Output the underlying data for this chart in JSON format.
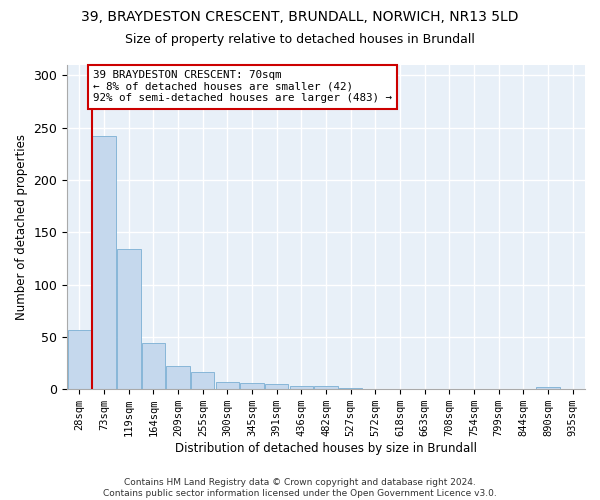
{
  "title": "39, BRAYDESTON CRESCENT, BRUNDALL, NORWICH, NR13 5LD",
  "subtitle": "Size of property relative to detached houses in Brundall",
  "xlabel": "Distribution of detached houses by size in Brundall",
  "ylabel": "Number of detached properties",
  "bar_color": "#c5d8ed",
  "bar_edge_color": "#7aafd4",
  "annotation_line_color": "#cc0000",
  "annotation_box_color": "#ffffff",
  "annotation_box_edge": "#cc0000",
  "figure_bg": "#ffffff",
  "axes_bg": "#e8f0f8",
  "grid_color": "#ffffff",
  "categories": [
    "28sqm",
    "73sqm",
    "119sqm",
    "164sqm",
    "209sqm",
    "255sqm",
    "300sqm",
    "345sqm",
    "391sqm",
    "436sqm",
    "482sqm",
    "527sqm",
    "572sqm",
    "618sqm",
    "663sqm",
    "708sqm",
    "754sqm",
    "799sqm",
    "844sqm",
    "890sqm",
    "935sqm"
  ],
  "values": [
    57,
    242,
    134,
    44,
    22,
    16,
    7,
    6,
    5,
    3,
    3,
    1,
    0,
    0,
    0,
    0,
    0,
    0,
    0,
    2,
    0
  ],
  "annotation_text": "39 BRAYDESTON CRESCENT: 70sqm\n← 8% of detached houses are smaller (42)\n92% of semi-detached houses are larger (483) →",
  "ylim": [
    0,
    310
  ],
  "yticks": [
    0,
    50,
    100,
    150,
    200,
    250,
    300
  ],
  "footnote": "Contains HM Land Registry data © Crown copyright and database right 2024.\nContains public sector information licensed under the Open Government Licence v3.0."
}
